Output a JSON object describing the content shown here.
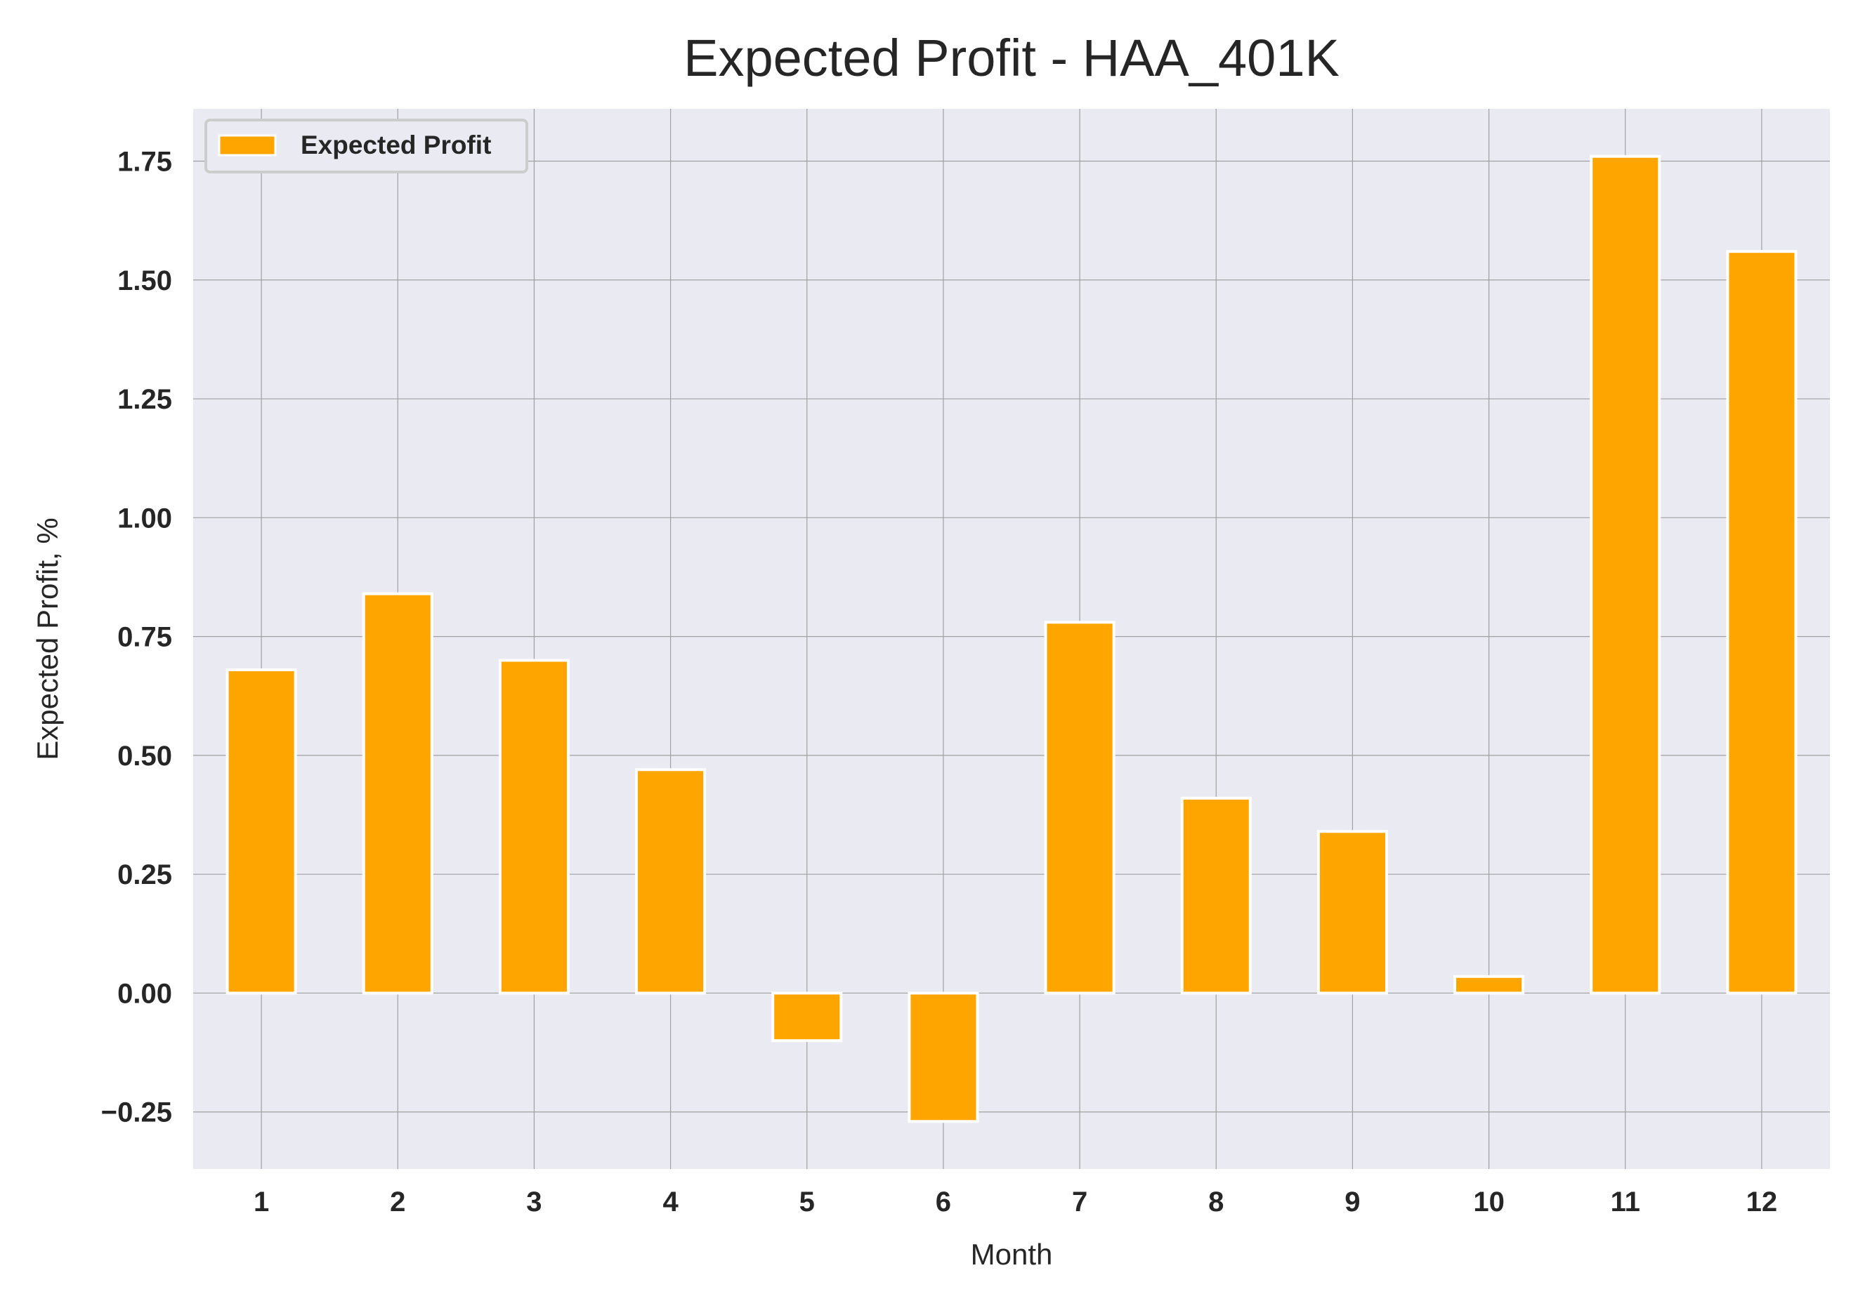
{
  "chart_data": {
    "type": "bar",
    "title": "Expected Profit - HAA_401K",
    "xlabel": "Month",
    "ylabel": "Expected Profit, %",
    "categories": [
      "1",
      "2",
      "3",
      "4",
      "5",
      "6",
      "7",
      "8",
      "9",
      "10",
      "11",
      "12"
    ],
    "series": [
      {
        "name": "Expected Profit",
        "values": [
          0.68,
          0.84,
          0.7,
          0.47,
          -0.1,
          -0.27,
          0.78,
          0.41,
          0.34,
          0.035,
          1.76,
          1.56
        ],
        "color": "#FFA500"
      }
    ],
    "yticks": [
      -0.25,
      0.0,
      0.25,
      0.5,
      0.75,
      1.0,
      1.25,
      1.5,
      1.75
    ],
    "ytick_labels": [
      "−0.25",
      "0.00",
      "0.25",
      "0.50",
      "0.75",
      "1.00",
      "1.25",
      "1.50",
      "1.75"
    ],
    "ylim": [
      -0.37,
      1.86
    ],
    "grid": true,
    "legend_position": "top-left",
    "colors": {
      "plot_background": "#EAEAF2",
      "grid": "#A0A0A0",
      "bar": "#FFA500",
      "bar_edge": "#FFFFFF",
      "text": "#262626"
    }
  }
}
